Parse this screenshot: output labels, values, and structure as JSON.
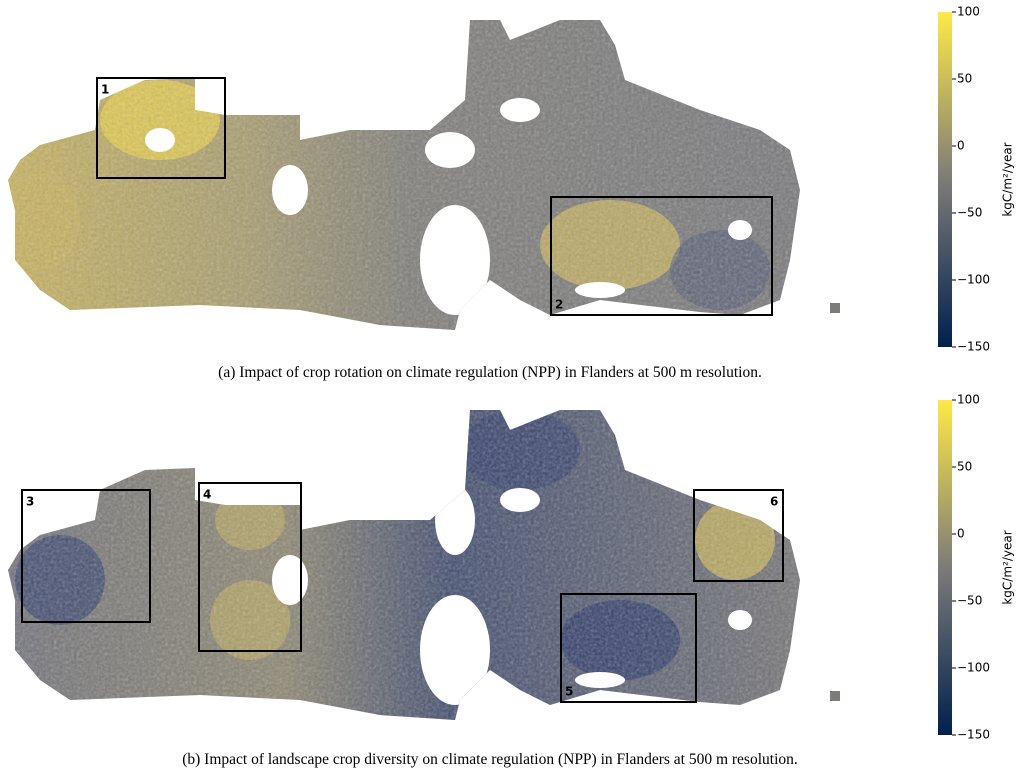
{
  "maps": [
    {
      "caption": "(a) Impact of crop rotation on climate regulation (NPP) in Flanders at 500 m resolution.",
      "colorbar": {
        "label": "kgC/m²/year",
        "lim": [
          -150,
          100
        ],
        "ticks": [
          100,
          50,
          0,
          {
            "value": -50,
            "label": "−50"
          },
          {
            "value": -100,
            "label": "−100"
          },
          {
            "value": -150,
            "label": "−150"
          }
        ],
        "colors": [
          "#00204d",
          "#7c7b78",
          "#ffe945"
        ]
      },
      "boxes": [
        {
          "label": "1"
        },
        {
          "label": "2"
        }
      ]
    },
    {
      "caption": "(b) Impact of landscape crop diversity on climate regulation (NPP) in Flanders at 500 m resolution.",
      "colorbar": {
        "label": "kgC/m²/year",
        "lim": [
          -150,
          100
        ],
        "ticks": [
          100,
          50,
          0,
          {
            "value": -50,
            "label": "−50"
          },
          {
            "value": -100,
            "label": "−100"
          },
          {
            "value": -150,
            "label": "−150"
          }
        ],
        "colors": [
          "#00204d",
          "#7c7b78",
          "#ffe945"
        ]
      },
      "boxes": [
        {
          "label": "3"
        },
        {
          "label": "4"
        },
        {
          "label": "5"
        },
        {
          "label": "6"
        }
      ]
    }
  ]
}
